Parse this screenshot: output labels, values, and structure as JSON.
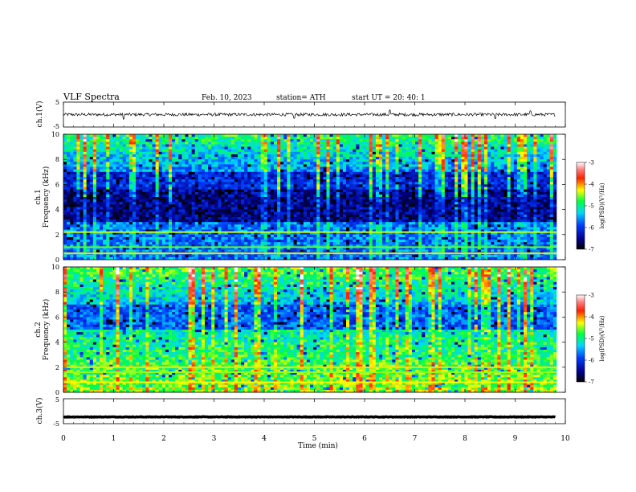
{
  "header": {
    "title": "VLF  Spectra",
    "date": "Feb. 10, 2023",
    "station": "station= ATH",
    "start": "start  UT  =   20: 40: 1"
  },
  "chart_data": [
    {
      "type": "line",
      "name": "ch1-waveform",
      "ylabel": "ch.1(V)",
      "ylim": [
        -5,
        5
      ],
      "yticks": [
        "5",
        "-5"
      ],
      "xlim": [
        0,
        10
      ],
      "baseline": 0,
      "noise_amplitude": 0.6,
      "spikes": [
        {
          "x": 1.2,
          "y": -1.8
        },
        {
          "x": 4.6,
          "y": -1.5
        },
        {
          "x": 6.5,
          "y": 1.8
        },
        {
          "x": 8.6,
          "y": -1.6
        },
        {
          "x": 9.3,
          "y": 1.5
        }
      ]
    },
    {
      "type": "heatmap",
      "name": "ch1-spectrogram",
      "ylabel": "ch.1\nFrequency (kHz)",
      "ylim": [
        0,
        10
      ],
      "yticks": [
        "0",
        "2",
        "4",
        "6",
        "8",
        "10"
      ],
      "xlim": [
        0,
        10
      ],
      "colorbar": {
        "label": "log(PSD)(V²/Hz)",
        "min": -7,
        "max": -3,
        "ticks": [
          "-3",
          "-4",
          "-5",
          "-6",
          "-7"
        ]
      },
      "description_bands": [
        {
          "f_khz": 2.2,
          "level": -4.4
        },
        {
          "f_khz": 1.0,
          "level": -4.6
        },
        {
          "f_khz": 0.5,
          "level": -4.2
        }
      ]
    },
    {
      "type": "heatmap",
      "name": "ch2-spectrogram",
      "ylabel": "ch.2\nFrequency (kHz)",
      "ylim": [
        0,
        10
      ],
      "yticks": [
        "0",
        "2",
        "4",
        "6",
        "8",
        "10"
      ],
      "xlim": [
        0,
        10
      ],
      "colorbar": {
        "label": "log(PSD)(V²/Hz)",
        "min": -7,
        "max": -3,
        "ticks": [
          "-3",
          "-4",
          "-5",
          "-6",
          "-7"
        ]
      },
      "description_bands": [
        {
          "f_khz": 2.0,
          "level": -4.2
        },
        {
          "f_khz": 1.6,
          "level": -4.5
        },
        {
          "f_khz": 0.8,
          "level": -4.3
        }
      ]
    },
    {
      "type": "line",
      "name": "ch3-waveform",
      "ylabel": "ch.3(V)",
      "ylim": [
        -5,
        5
      ],
      "yticks": [
        "5",
        "-5"
      ],
      "xlim": [
        0,
        10
      ],
      "baseline": -2.3,
      "noise_amplitude": 0.1
    }
  ],
  "xaxis": {
    "label": "Time  (min)",
    "ticks": [
      "0",
      "1",
      "2",
      "3",
      "4",
      "5",
      "6",
      "7",
      "8",
      "9",
      "10"
    ]
  }
}
